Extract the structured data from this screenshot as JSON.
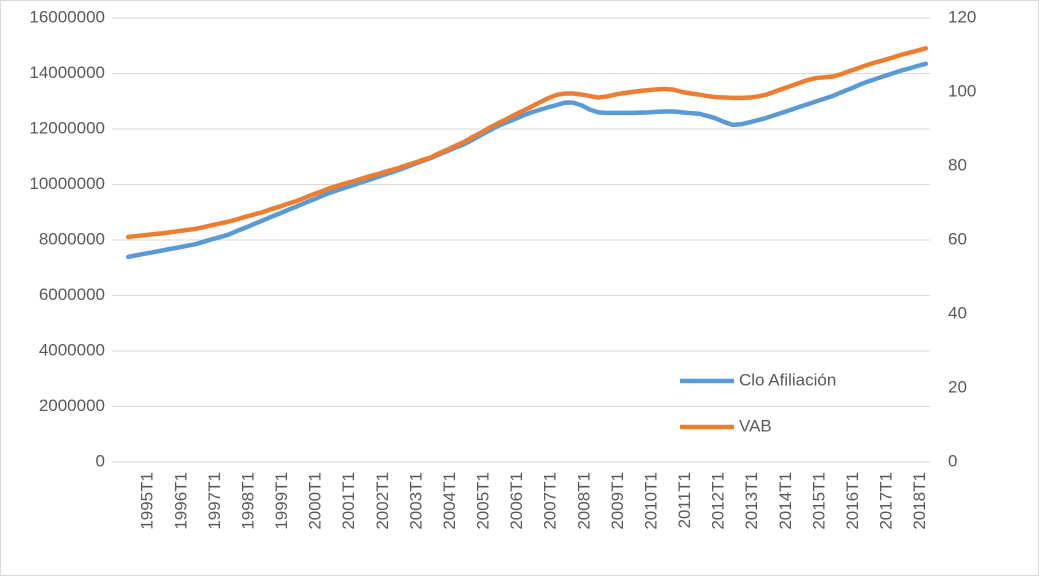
{
  "chart_data": {
    "type": "line",
    "categories": [
      "1995T1",
      null,
      null,
      null,
      "1996T1",
      null,
      null,
      null,
      "1997T1",
      null,
      null,
      null,
      "1998T1",
      null,
      null,
      null,
      "1999T1",
      null,
      null,
      null,
      "2000T1",
      null,
      null,
      null,
      "2001T1",
      null,
      null,
      null,
      "2002T1",
      null,
      null,
      null,
      "2003T1",
      null,
      null,
      null,
      "2004T1",
      null,
      null,
      null,
      "2005T1",
      null,
      null,
      null,
      "2006T1",
      null,
      null,
      null,
      "2007T1",
      null,
      null,
      null,
      "2008T1",
      null,
      null,
      null,
      "2009T1",
      null,
      null,
      null,
      "2010T1",
      null,
      null,
      null,
      "2011T1",
      null,
      null,
      null,
      "2012T1",
      null,
      null,
      null,
      "2013T1",
      null,
      null,
      null,
      "2014T1",
      null,
      null,
      null,
      "2015T1",
      null,
      null,
      null,
      "2016T1",
      null,
      null,
      null,
      "2017T1",
      null,
      null,
      null,
      "2018T1",
      null,
      null,
      null
    ],
    "series": [
      {
        "name": "Clo Afiliación",
        "color": "#5b9bd5",
        "axis": "y",
        "values": [
          7390000,
          7450000,
          7510000,
          7560000,
          7620000,
          7680000,
          7730000,
          7790000,
          7850000,
          7940000,
          8030000,
          8110000,
          8200000,
          8330000,
          8450000,
          8580000,
          8700000,
          8830000,
          8950000,
          9080000,
          9200000,
          9330000,
          9450000,
          9580000,
          9700000,
          9800000,
          9900000,
          10000000,
          10100000,
          10200000,
          10300000,
          10400000,
          10500000,
          10610000,
          10730000,
          10840000,
          10950000,
          11080000,
          11200000,
          11330000,
          11450000,
          11610000,
          11780000,
          11940000,
          12100000,
          12230000,
          12350000,
          12480000,
          12600000,
          12690000,
          12780000,
          12860000,
          12950000,
          12950000,
          12850000,
          12700000,
          12600000,
          12580000,
          12580000,
          12580000,
          12580000,
          12590000,
          12600000,
          12620000,
          12630000,
          12630000,
          12600000,
          12570000,
          12550000,
          12470000,
          12380000,
          12250000,
          12150000,
          12170000,
          12240000,
          12320000,
          12400000,
          12500000,
          12600000,
          12700000,
          12800000,
          12900000,
          13000000,
          13100000,
          13200000,
          13330000,
          13450000,
          13580000,
          13700000,
          13800000,
          13900000,
          14000000,
          14100000,
          14180000,
          14270000,
          14350000
        ]
      },
      {
        "name": "VAB",
        "color": "#ed7d31",
        "axis": "y2",
        "values": [
          60.8,
          61.1,
          61.3,
          61.6,
          61.8,
          62.1,
          62.4,
          62.7,
          63.0,
          63.5,
          64.0,
          64.5,
          65.0,
          65.6,
          66.3,
          66.9,
          67.5,
          68.3,
          69.0,
          69.8,
          70.5,
          71.4,
          72.3,
          73.1,
          74.0,
          74.7,
          75.4,
          76.0,
          76.7,
          77.4,
          78.0,
          78.7,
          79.3,
          80.1,
          80.8,
          81.6,
          82.3,
          83.4,
          84.4,
          85.5,
          86.5,
          87.8,
          89.0,
          90.3,
          91.5,
          92.6,
          93.8,
          94.9,
          96.0,
          97.2,
          98.3,
          99.2,
          99.6,
          99.6,
          99.3,
          98.9,
          98.5,
          98.8,
          99.3,
          99.7,
          100.0,
          100.3,
          100.5,
          100.7,
          100.8,
          100.6,
          100.0,
          99.6,
          99.3,
          98.9,
          98.6,
          98.5,
          98.4,
          98.4,
          98.5,
          98.8,
          99.3,
          100.1,
          100.9,
          101.7,
          102.5,
          103.3,
          103.8,
          104.0,
          104.2,
          104.9,
          105.7,
          106.5,
          107.3,
          108.0,
          108.6,
          109.3,
          110.0,
          110.6,
          111.2,
          111.8
        ]
      }
    ],
    "ylim": [
      0,
      16000000
    ],
    "yticks": [
      0,
      2000000,
      4000000,
      6000000,
      8000000,
      10000000,
      12000000,
      14000000,
      16000000
    ],
    "y2lim": [
      0,
      120
    ],
    "y2ticks": [
      0,
      20,
      40,
      60,
      80,
      100,
      120
    ],
    "grid": true
  }
}
